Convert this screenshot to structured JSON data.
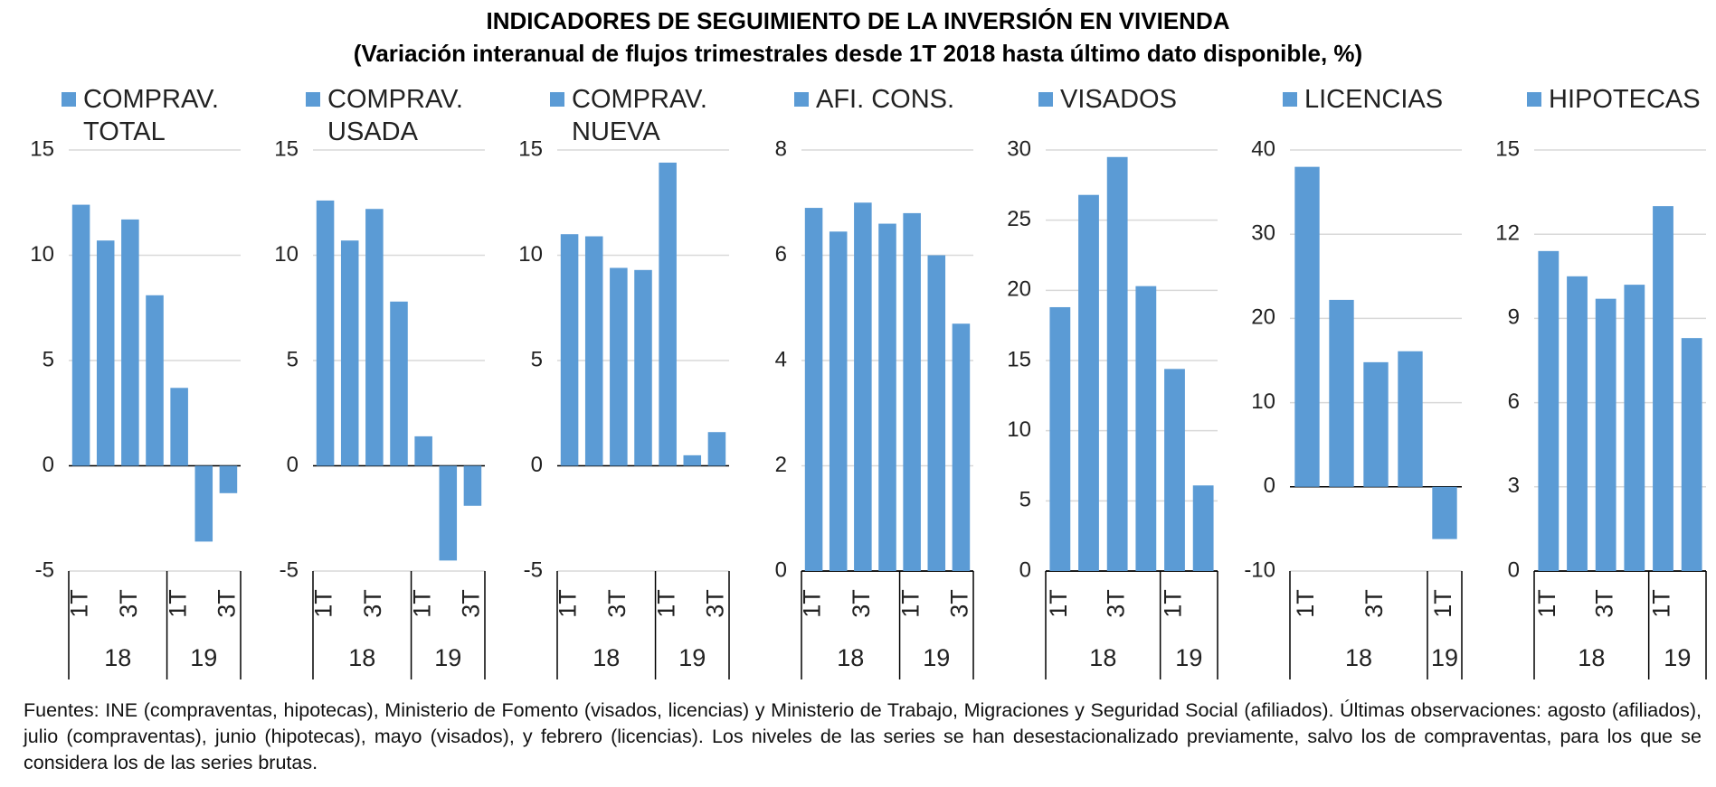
{
  "title": "INDICADORES DE SEGUIMIENTO DE LA INVERSIÓN EN VIVIENDA",
  "subtitle": "(Variación interanual de flujos trimestrales desde 1T 2018 hasta último dato disponible, %)",
  "note": "Fuentes: INE (compraventas, hipotecas), Ministerio de Fomento (visados, licencias) y Ministerio de Trabajo, Migraciones y Seguridad Social (afiliados). Últimas observaciones: agosto (afiliados), julio (compraventas), junio (hipotecas), mayo (visados), y febrero (licencias). Los niveles de las series se han desestacionalizado previamente, salvo los de compraventas, para los que se considera los de las series brutas.",
  "chart_data": [
    {
      "type": "bar",
      "categories": [
        "1T",
        null,
        "3T",
        null,
        "1T",
        null,
        "3T"
      ],
      "x_groups": [
        {
          "label": "18",
          "size": 4
        },
        {
          "label": "19",
          "size": 3
        }
      ],
      "series": [
        {
          "name": "COMPRAV. TOTAL",
          "color": "#5b9bd5",
          "values": [
            12.4,
            10.7,
            11.7,
            8.1,
            3.7,
            -3.6,
            -1.3
          ]
        }
      ],
      "ylim": [
        -5,
        15
      ],
      "yticks": [
        -5,
        0,
        5,
        10,
        15
      ],
      "grid": true
    },
    {
      "type": "bar",
      "categories": [
        "1T",
        null,
        "3T",
        null,
        "1T",
        null,
        "3T"
      ],
      "x_groups": [
        {
          "label": "18",
          "size": 4
        },
        {
          "label": "19",
          "size": 3
        }
      ],
      "series": [
        {
          "name": "COMPRAV. USADA",
          "color": "#5b9bd5",
          "values": [
            12.6,
            10.7,
            12.2,
            7.8,
            1.4,
            -4.5,
            -1.9
          ]
        }
      ],
      "ylim": [
        -5,
        15
      ],
      "yticks": [
        -5,
        0,
        5,
        10,
        15
      ],
      "grid": true
    },
    {
      "type": "bar",
      "categories": [
        "1T",
        null,
        "3T",
        null,
        "1T",
        null,
        "3T"
      ],
      "x_groups": [
        {
          "label": "18",
          "size": 4
        },
        {
          "label": "19",
          "size": 3
        }
      ],
      "series": [
        {
          "name": "COMPRAV. NUEVA",
          "color": "#5b9bd5",
          "values": [
            11.0,
            10.9,
            9.4,
            9.3,
            14.4,
            0.5,
            1.6
          ]
        }
      ],
      "ylim": [
        -5,
        15
      ],
      "yticks": [
        -5,
        0,
        5,
        10,
        15
      ],
      "grid": true
    },
    {
      "type": "bar",
      "categories": [
        "1T",
        null,
        "3T",
        null,
        "1T",
        null,
        "3T"
      ],
      "x_groups": [
        {
          "label": "18",
          "size": 4
        },
        {
          "label": "19",
          "size": 3
        }
      ],
      "series": [
        {
          "name": "AFI. CONS.",
          "color": "#5b9bd5",
          "values": [
            6.9,
            6.45,
            7.0,
            6.6,
            6.8,
            6.0,
            4.7
          ]
        }
      ],
      "ylim": [
        0,
        8
      ],
      "yticks": [
        0,
        2,
        4,
        6,
        8
      ],
      "grid": true
    },
    {
      "type": "bar",
      "categories": [
        "1T",
        null,
        "3T",
        null,
        "1T",
        null
      ],
      "x_groups": [
        {
          "label": "18",
          "size": 4
        },
        {
          "label": "19",
          "size": 2
        }
      ],
      "series": [
        {
          "name": "VISADOS",
          "color": "#5b9bd5",
          "values": [
            18.8,
            26.8,
            29.5,
            20.3,
            14.4,
            6.1
          ]
        }
      ],
      "ylim": [
        0,
        30
      ],
      "yticks": [
        0,
        5,
        10,
        15,
        20,
        25,
        30
      ],
      "grid": true
    },
    {
      "type": "bar",
      "categories": [
        "1T",
        null,
        "3T",
        null,
        "1T"
      ],
      "x_groups": [
        {
          "label": "18",
          "size": 4
        },
        {
          "label": "19",
          "size": 1
        }
      ],
      "series": [
        {
          "name": "LICENCIAS",
          "color": "#5b9bd5",
          "values": [
            38.0,
            22.2,
            14.8,
            16.1,
            -6.2
          ]
        }
      ],
      "ylim": [
        -10,
        40
      ],
      "yticks": [
        -10,
        0,
        10,
        20,
        30,
        40
      ],
      "grid": true
    },
    {
      "type": "bar",
      "categories": [
        "1T",
        null,
        "3T",
        null,
        "1T",
        null
      ],
      "x_groups": [
        {
          "label": "18",
          "size": 4
        },
        {
          "label": "19",
          "size": 2
        }
      ],
      "series": [
        {
          "name": "HIPOTECAS",
          "color": "#5b9bd5",
          "values": [
            11.4,
            10.5,
            9.7,
            10.2,
            13.0,
            8.3
          ]
        }
      ],
      "ylim": [
        0,
        15
      ],
      "yticks": [
        0,
        3,
        6,
        9,
        12,
        15
      ],
      "grid": true
    }
  ]
}
